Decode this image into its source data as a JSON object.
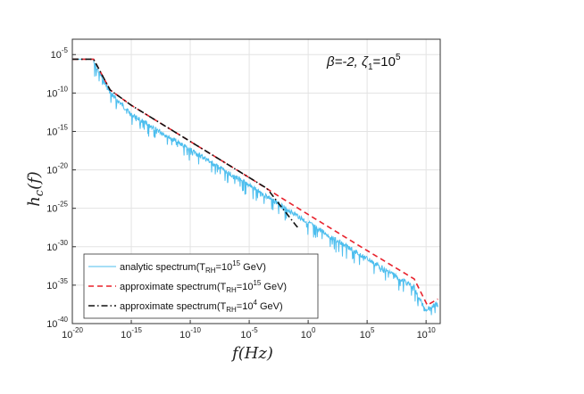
{
  "chart_data": {
    "type": "line",
    "title": "",
    "xlabel": "f(Hz)",
    "ylabel": "h_c(f)",
    "xscale": "log",
    "yscale": "log",
    "xlim_exp": [
      -20,
      11.2
    ],
    "ylim_exp": [
      -40,
      -3
    ],
    "grid": true,
    "x_ticks": [
      {
        "base": "10",
        "exp": "-20",
        "value": -20
      },
      {
        "base": "10",
        "exp": "-15",
        "value": -15
      },
      {
        "base": "10",
        "exp": "-10",
        "value": -10
      },
      {
        "base": "10",
        "exp": "-5",
        "value": -5
      },
      {
        "base": "10",
        "exp": "0",
        "value": 0
      },
      {
        "base": "10",
        "exp": "5",
        "value": 5
      },
      {
        "base": "10",
        "exp": "10",
        "value": 10
      }
    ],
    "y_ticks": [
      {
        "base": "10",
        "exp": "-5",
        "value": -5
      },
      {
        "base": "10",
        "exp": "-10",
        "value": -10
      },
      {
        "base": "10",
        "exp": "-15",
        "value": -15
      },
      {
        "base": "10",
        "exp": "-20",
        "value": -20
      },
      {
        "base": "10",
        "exp": "-25",
        "value": -25
      },
      {
        "base": "10",
        "exp": "-30",
        "value": -30
      },
      {
        "base": "10",
        "exp": "-35",
        "value": -35
      },
      {
        "base": "10",
        "exp": "-40",
        "value": -40
      }
    ],
    "annotation": {
      "prefix": "β=-2, ζ",
      "sub": "1",
      "mid": "=10",
      "sup": "5"
    },
    "legend_position": "bottom-left",
    "series": [
      {
        "name": "analytic spectrum",
        "legend": {
          "pre": "analytic spectrum(T",
          "sub": "RH",
          "mid": "=10",
          "sup": "15",
          "post": " GeV)"
        },
        "color": "#4dbeee",
        "style": "solid",
        "note": "oscillating around the red curve, dips up to ~2 decades below",
        "x": [
          -20,
          -18.2,
          -16.8,
          -15,
          -10,
          -5,
          -2,
          0,
          5,
          9,
          9.9,
          11
        ],
        "y": [
          -5.6,
          -5.6,
          -9.6,
          -12.4,
          -17.0,
          -21.6,
          -24.5,
          -26.5,
          -31.2,
          -34.9,
          -37.8,
          -37.0
        ]
      },
      {
        "name": "approximate spectrum TRH=10^15 GeV",
        "legend": {
          "pre": "approximate spectrum(T",
          "sub": "RH",
          "mid": "=10",
          "sup": "15",
          "post": " GeV)"
        },
        "color": "#e8222c",
        "style": "dashed",
        "x": [
          -20,
          -18.2,
          -16.8,
          -15,
          -10,
          -5,
          -2,
          0,
          5,
          9,
          10.1,
          11
        ],
        "y": [
          -5.6,
          -5.6,
          -9.6,
          -11.6,
          -16.3,
          -21.0,
          -23.9,
          -25.8,
          -30.5,
          -34.2,
          -37.6,
          -36.8
        ]
      },
      {
        "name": "approximate spectrum TRH=10^4 GeV",
        "legend": {
          "pre": "approximate spectrum(T",
          "sub": "RH",
          "mid": "=10",
          "sup": "4",
          "post": " GeV)"
        },
        "color": "#111111",
        "style": "dashdot",
        "x": [
          -20,
          -18.2,
          -16.8,
          -15,
          -10,
          -5,
          -3.5,
          -1,
          -0.8
        ],
        "y": [
          -5.6,
          -5.6,
          -9.6,
          -11.6,
          -16.3,
          -21.0,
          -22.4,
          -27.3,
          -27.6
        ]
      }
    ]
  }
}
